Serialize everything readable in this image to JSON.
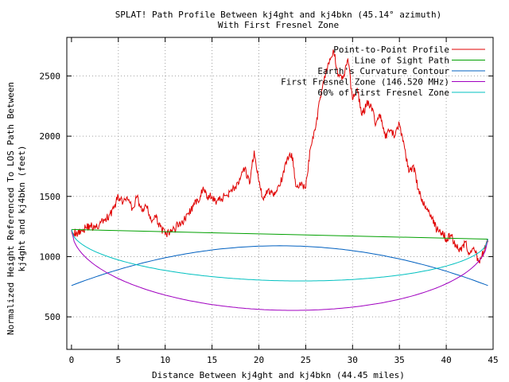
{
  "chart_data": {
    "type": "line",
    "title": "SPLAT! Path Profile Between kj4ght and kj4bkn (45.14° azimuth)",
    "subtitle": "With First Fresnel Zone",
    "xlabel": "Distance Between kj4ght and kj4bkn (44.45 miles)",
    "ylabel_line1": "Normalized Height Referenced To LOS Path Between",
    "ylabel_line2": "kj4ght and kj4bkn (feet)",
    "xlim": [
      -0.5,
      45
    ],
    "ylim": [
      230,
      2820
    ],
    "x_ticks": [
      0,
      5,
      10,
      15,
      20,
      25,
      30,
      35,
      40,
      45
    ],
    "y_ticks": [
      500,
      1000,
      1500,
      2000,
      2500
    ],
    "x_tick_labels": [
      "0",
      "5",
      "10",
      "15",
      "20",
      "25",
      "30",
      "35",
      "40",
      "45"
    ],
    "y_tick_labels": [
      "500",
      "1000",
      "1500",
      "2000",
      "2500"
    ],
    "grid": true,
    "legend_position": "top-right",
    "series": [
      {
        "name": "Point-to-Point Profile",
        "color": "#e00000",
        "kind": "profile",
        "x": [
          0,
          0.5,
          1,
          1.5,
          2,
          2.5,
          3,
          3.5,
          4,
          4.5,
          5,
          5.5,
          6,
          6.5,
          7,
          7.5,
          8,
          8.5,
          9,
          9.5,
          10,
          10.5,
          11,
          11.5,
          12,
          12.5,
          13,
          13.5,
          14,
          14.5,
          15,
          15.5,
          16,
          16.5,
          17,
          17.5,
          18,
          18.5,
          19,
          19.5,
          20,
          20.5,
          21,
          21.5,
          22,
          22.5,
          23,
          23.5,
          24,
          24.5,
          25,
          25.5,
          26,
          26.5,
          27,
          27.5,
          28,
          28.5,
          29,
          29.5,
          30,
          30.5,
          31,
          31.5,
          32,
          32.5,
          33,
          33.5,
          34,
          34.5,
          35,
          35.5,
          36,
          36.5,
          37,
          37.5,
          38,
          38.5,
          39,
          39.5,
          40,
          40.5,
          41,
          41.5,
          42,
          42.5,
          43,
          43.5,
          44,
          44.45
        ],
        "values": [
          1220,
          1190,
          1215,
          1240,
          1260,
          1230,
          1270,
          1300,
          1340,
          1400,
          1500,
          1450,
          1470,
          1400,
          1500,
          1380,
          1420,
          1300,
          1320,
          1250,
          1180,
          1200,
          1230,
          1280,
          1300,
          1360,
          1420,
          1460,
          1560,
          1490,
          1500,
          1460,
          1480,
          1510,
          1550,
          1580,
          1640,
          1730,
          1600,
          1880,
          1620,
          1470,
          1560,
          1520,
          1580,
          1640,
          1810,
          1860,
          1580,
          1590,
          1570,
          1900,
          2050,
          2300,
          2500,
          2600,
          2700,
          2510,
          2480,
          2640,
          2300,
          2400,
          2170,
          2270,
          2250,
          2100,
          2180,
          1980,
          2050,
          2000,
          2100,
          1930,
          1700,
          1760,
          1560,
          1440,
          1400,
          1320,
          1220,
          1200,
          1150,
          1180,
          1100,
          1060,
          1120,
          1020,
          1050,
          960,
          1040,
          1120
        ]
      },
      {
        "name": "Line of Sight Path",
        "color": "#00a000",
        "kind": "line",
        "x": [
          0,
          44.45
        ],
        "values": [
          1225,
          1145
        ]
      },
      {
        "name": "Earth's Curvature Contour",
        "color": "#0060c0",
        "kind": "parabola",
        "x": [
          0,
          22.22,
          44.45
        ],
        "values": [
          760,
          1090,
          760
        ]
      },
      {
        "name": "First Fresnel Zone (146.520 MHz)",
        "color": "#a000c0",
        "kind": "ellipse",
        "x": [
          0,
          22.22,
          44.45
        ],
        "values": [
          1225,
          555,
          1145
        ]
      },
      {
        "name": "60% of First Fresnel Zone",
        "color": "#00c0c0",
        "kind": "ellipse",
        "x": [
          0,
          22.22,
          44.45
        ],
        "values": [
          1225,
          800,
          1145
        ]
      }
    ]
  }
}
